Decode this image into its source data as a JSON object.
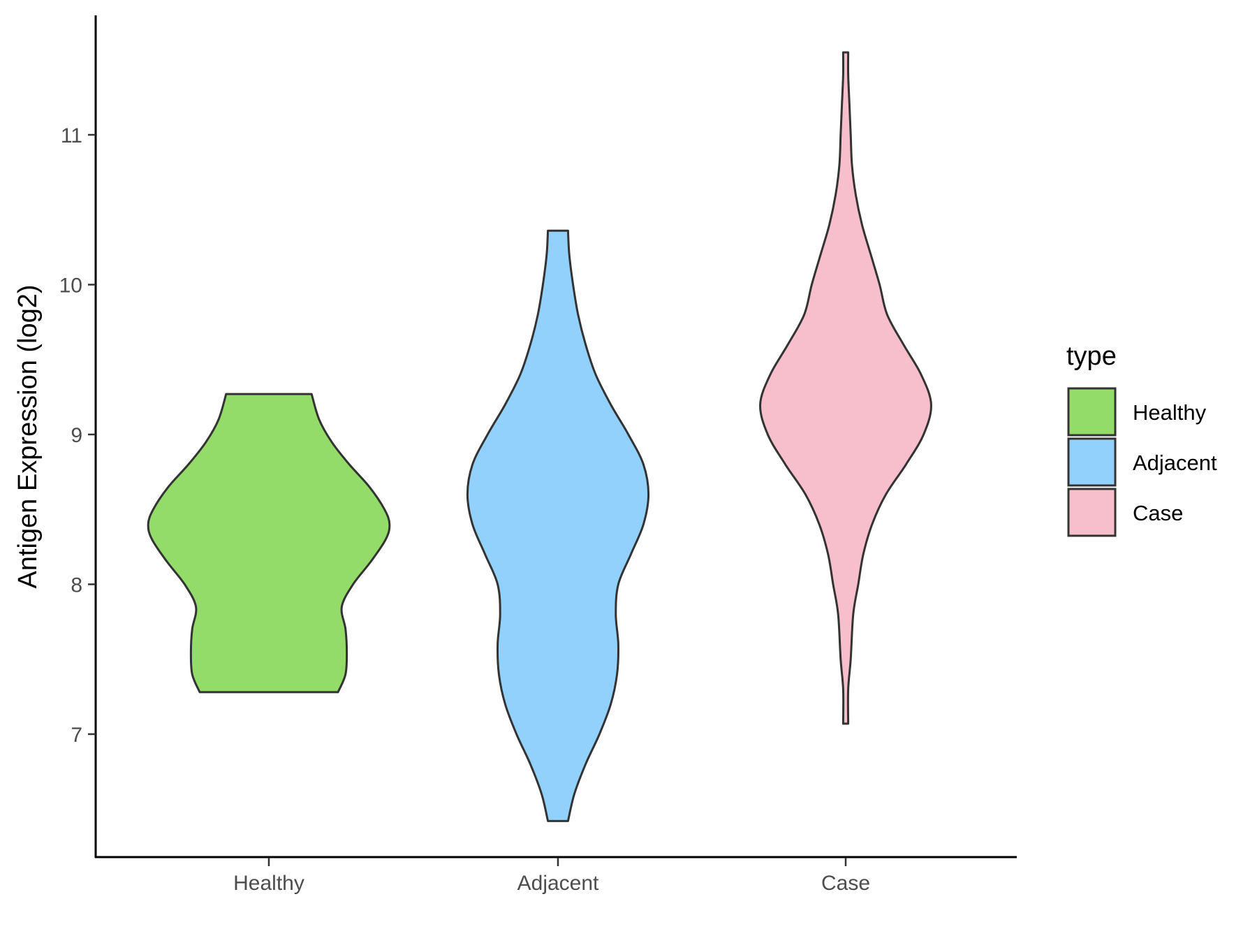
{
  "chart_data": {
    "type": "violin",
    "title": "",
    "xlabel": "",
    "ylabel": "Antigen Expression (log2)",
    "ylim": [
      6.2,
      11.8
    ],
    "yticks": [
      7,
      8,
      9,
      10,
      11
    ],
    "categories": [
      "Healthy",
      "Adjacent",
      "Case"
    ],
    "legend": {
      "title": "type",
      "position": "right",
      "entries": [
        "Healthy",
        "Adjacent",
        "Case"
      ]
    },
    "colors": {
      "Healthy": "#93dc6a",
      "Adjacent": "#93d1fd",
      "Case": "#f7bfcb",
      "outline": "#333333"
    },
    "series": [
      {
        "name": "Healthy",
        "min": 7.28,
        "max": 9.27,
        "profile": [
          [
            7.28,
            0.55
          ],
          [
            7.4,
            0.61
          ],
          [
            7.55,
            0.62
          ],
          [
            7.7,
            0.61
          ],
          [
            7.85,
            0.58
          ],
          [
            8.0,
            0.67
          ],
          [
            8.15,
            0.81
          ],
          [
            8.3,
            0.93
          ],
          [
            8.4,
            0.96
          ],
          [
            8.5,
            0.92
          ],
          [
            8.65,
            0.8
          ],
          [
            8.8,
            0.64
          ],
          [
            8.95,
            0.5
          ],
          [
            9.1,
            0.4
          ],
          [
            9.27,
            0.34
          ]
        ]
      },
      {
        "name": "Adjacent",
        "min": 6.42,
        "max": 10.36,
        "profile": [
          [
            6.42,
            0.08
          ],
          [
            6.6,
            0.13
          ],
          [
            6.8,
            0.22
          ],
          [
            7.0,
            0.33
          ],
          [
            7.2,
            0.42
          ],
          [
            7.4,
            0.47
          ],
          [
            7.6,
            0.48
          ],
          [
            7.8,
            0.46
          ],
          [
            8.0,
            0.48
          ],
          [
            8.2,
            0.58
          ],
          [
            8.4,
            0.68
          ],
          [
            8.6,
            0.72
          ],
          [
            8.8,
            0.68
          ],
          [
            9.0,
            0.56
          ],
          [
            9.2,
            0.42
          ],
          [
            9.4,
            0.3
          ],
          [
            9.6,
            0.22
          ],
          [
            9.8,
            0.16
          ],
          [
            10.0,
            0.12
          ],
          [
            10.2,
            0.09
          ],
          [
            10.36,
            0.08
          ]
        ]
      },
      {
        "name": "Case",
        "min": 7.07,
        "max": 11.55,
        "profile": [
          [
            7.07,
            0.02
          ],
          [
            7.3,
            0.02
          ],
          [
            7.5,
            0.04
          ],
          [
            7.8,
            0.06
          ],
          [
            8.0,
            0.1
          ],
          [
            8.2,
            0.14
          ],
          [
            8.4,
            0.21
          ],
          [
            8.6,
            0.32
          ],
          [
            8.8,
            0.48
          ],
          [
            9.0,
            0.62
          ],
          [
            9.2,
            0.68
          ],
          [
            9.4,
            0.6
          ],
          [
            9.6,
            0.46
          ],
          [
            9.8,
            0.33
          ],
          [
            10.0,
            0.27
          ],
          [
            10.2,
            0.2
          ],
          [
            10.4,
            0.13
          ],
          [
            10.6,
            0.08
          ],
          [
            10.8,
            0.05
          ],
          [
            11.0,
            0.04
          ],
          [
            11.2,
            0.03
          ],
          [
            11.4,
            0.02
          ],
          [
            11.55,
            0.02
          ]
        ]
      }
    ]
  }
}
